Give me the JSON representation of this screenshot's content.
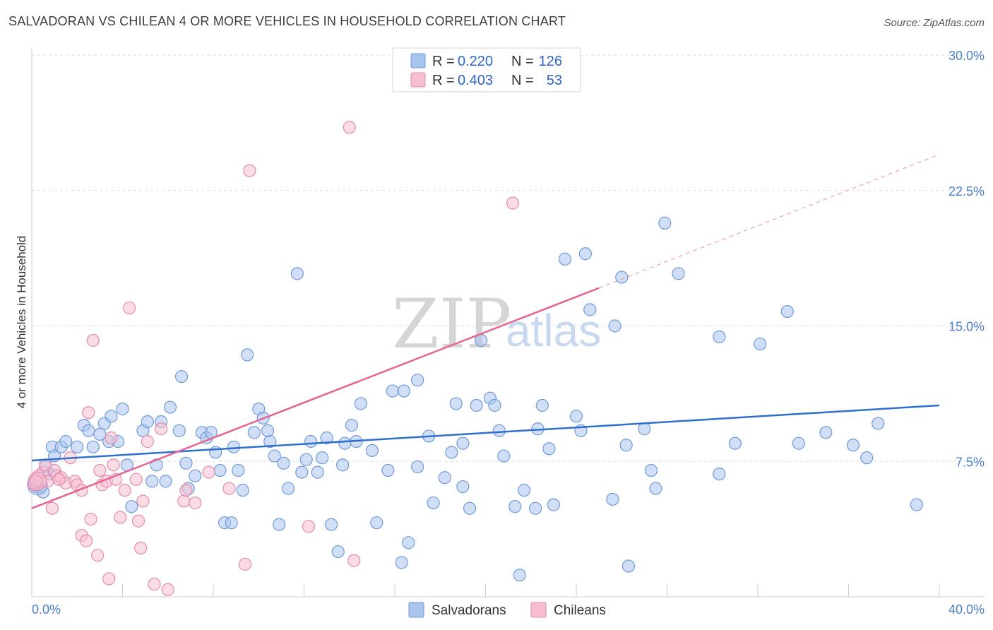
{
  "chart_data": {
    "type": "scatter",
    "title": "SALVADORAN VS CHILEAN 4 OR MORE VEHICLES IN HOUSEHOLD CORRELATION CHART",
    "source": "Source: ZipAtlas.com",
    "xlabel": "",
    "ylabel": "4 or more Vehicles in Household",
    "xlim": [
      0,
      40
    ],
    "ylim": [
      0,
      30
    ],
    "x_tick_labels": [
      "0.0%",
      "40.0%"
    ],
    "y_ticks": [
      7.5,
      15.0,
      22.5,
      30.0
    ],
    "y_tick_labels": [
      "7.5%",
      "15.0%",
      "22.5%",
      "30.0%"
    ],
    "watermark": {
      "zip": "ZIP",
      "atlas": "atlas"
    },
    "legend": [
      {
        "series": "Salvadorans",
        "r_label": "R =",
        "r_value": "0.220",
        "n_label": "N =",
        "n_value": "126"
      },
      {
        "series": "Chileans",
        "r_label": "R =",
        "r_value": "0.403",
        "n_label": "N =",
        "n_value": "53"
      }
    ],
    "colors": {
      "salvadorans_fill": "#a9c5ee",
      "salvadorans_stroke": "#6f9ad8",
      "salvadorans_line": "#2f6fcf",
      "chileans_fill": "#f6bfd1",
      "chileans_stroke": "#e58aab",
      "chileans_line": "#e46493",
      "grid": "#dddddd",
      "axis": "#cccccc"
    },
    "series": [
      {
        "name": "Salvadorans",
        "trend": {
          "x": [
            0,
            40
          ],
          "y": [
            7.55,
            10.6
          ]
        },
        "points": [
          [
            0.2,
            6.1
          ],
          [
            0.3,
            6.3
          ],
          [
            0.4,
            6.1
          ],
          [
            0.5,
            5.8
          ],
          [
            0.6,
            7.2
          ],
          [
            0.8,
            6.8
          ],
          [
            0.9,
            8.3
          ],
          [
            1.0,
            7.8
          ],
          [
            1.3,
            8.3
          ],
          [
            1.5,
            8.6
          ],
          [
            2.0,
            8.3
          ],
          [
            2.3,
            9.5
          ],
          [
            2.5,
            9.2
          ],
          [
            2.7,
            8.3
          ],
          [
            3.0,
            9.0
          ],
          [
            3.2,
            9.6
          ],
          [
            3.4,
            8.6
          ],
          [
            3.5,
            10.0
          ],
          [
            3.8,
            8.6
          ],
          [
            4.0,
            10.4
          ],
          [
            4.2,
            7.3
          ],
          [
            4.4,
            5.0
          ],
          [
            4.9,
            9.2
          ],
          [
            5.1,
            9.7
          ],
          [
            5.3,
            6.4
          ],
          [
            5.5,
            7.3
          ],
          [
            5.7,
            9.7
          ],
          [
            5.9,
            6.4
          ],
          [
            6.1,
            10.5
          ],
          [
            6.5,
            9.2
          ],
          [
            6.6,
            12.2
          ],
          [
            6.8,
            7.4
          ],
          [
            6.9,
            6.0
          ],
          [
            7.2,
            6.7
          ],
          [
            7.5,
            9.1
          ],
          [
            7.7,
            8.8
          ],
          [
            7.9,
            9.1
          ],
          [
            8.1,
            8.0
          ],
          [
            8.3,
            7.0
          ],
          [
            8.5,
            4.1
          ],
          [
            8.8,
            4.1
          ],
          [
            8.9,
            8.3
          ],
          [
            9.1,
            7.0
          ],
          [
            9.3,
            5.9
          ],
          [
            9.5,
            13.4
          ],
          [
            9.8,
            9.1
          ],
          [
            10.0,
            10.4
          ],
          [
            10.2,
            9.9
          ],
          [
            10.4,
            9.2
          ],
          [
            10.5,
            8.6
          ],
          [
            10.7,
            7.8
          ],
          [
            10.9,
            4.0
          ],
          [
            11.1,
            7.4
          ],
          [
            11.3,
            6.0
          ],
          [
            11.7,
            17.9
          ],
          [
            11.9,
            6.9
          ],
          [
            12.1,
            7.6
          ],
          [
            12.3,
            8.6
          ],
          [
            12.6,
            6.9
          ],
          [
            12.8,
            7.7
          ],
          [
            13.0,
            8.8
          ],
          [
            13.2,
            4.0
          ],
          [
            13.5,
            2.5
          ],
          [
            13.7,
            7.3
          ],
          [
            13.8,
            8.5
          ],
          [
            14.1,
            9.5
          ],
          [
            14.3,
            8.6
          ],
          [
            14.5,
            10.7
          ],
          [
            15.0,
            8.1
          ],
          [
            15.2,
            4.1
          ],
          [
            15.7,
            7.0
          ],
          [
            15.9,
            11.4
          ],
          [
            16.3,
            1.9
          ],
          [
            16.4,
            11.4
          ],
          [
            16.6,
            3.0
          ],
          [
            17.0,
            12.0
          ],
          [
            17.0,
            7.2
          ],
          [
            17.5,
            8.9
          ],
          [
            17.7,
            5.2
          ],
          [
            18.2,
            6.6
          ],
          [
            18.5,
            8.0
          ],
          [
            18.7,
            10.7
          ],
          [
            19.0,
            8.5
          ],
          [
            19.3,
            4.9
          ],
          [
            19.6,
            10.6
          ],
          [
            19.0,
            6.1
          ],
          [
            19.8,
            14.2
          ],
          [
            20.2,
            11.0
          ],
          [
            20.4,
            10.6
          ],
          [
            20.6,
            9.2
          ],
          [
            20.8,
            7.8
          ],
          [
            21.3,
            5.0
          ],
          [
            21.5,
            1.2
          ],
          [
            21.7,
            5.9
          ],
          [
            22.2,
            4.9
          ],
          [
            22.3,
            9.3
          ],
          [
            22.5,
            10.6
          ],
          [
            22.8,
            8.2
          ],
          [
            23.0,
            5.1
          ],
          [
            23.5,
            18.7
          ],
          [
            24.0,
            10.0
          ],
          [
            24.2,
            9.2
          ],
          [
            24.4,
            19.0
          ],
          [
            24.6,
            15.9
          ],
          [
            25.7,
            15.0
          ],
          [
            25.6,
            5.4
          ],
          [
            26.0,
            17.7
          ],
          [
            26.2,
            8.4
          ],
          [
            26.3,
            1.7
          ],
          [
            27.0,
            9.3
          ],
          [
            27.3,
            7.0
          ],
          [
            27.5,
            6.0
          ],
          [
            27.9,
            20.7
          ],
          [
            28.5,
            17.9
          ],
          [
            30.3,
            14.4
          ],
          [
            30.3,
            6.8
          ],
          [
            31.0,
            8.5
          ],
          [
            32.1,
            14.0
          ],
          [
            33.3,
            15.8
          ],
          [
            33.8,
            8.5
          ],
          [
            35.0,
            9.1
          ],
          [
            36.2,
            8.4
          ],
          [
            36.8,
            7.7
          ],
          [
            37.3,
            9.6
          ],
          [
            39.0,
            5.1
          ]
        ]
      },
      {
        "name": "Chileans",
        "trend": {
          "x": [
            0,
            25
          ],
          "y": [
            4.9,
            17.1
          ]
        },
        "trend_extension": {
          "x": [
            25,
            40
          ],
          "y": [
            17.1,
            24.5
          ]
        },
        "points": [
          [
            0.1,
            6.2
          ],
          [
            0.2,
            6.5
          ],
          [
            0.3,
            6.7
          ],
          [
            0.4,
            6.4
          ],
          [
            0.5,
            6.9
          ],
          [
            0.6,
            7.3
          ],
          [
            0.7,
            6.4
          ],
          [
            0.9,
            4.9
          ],
          [
            1.0,
            7.0
          ],
          [
            1.1,
            6.7
          ],
          [
            1.3,
            6.6
          ],
          [
            1.5,
            6.3
          ],
          [
            1.7,
            7.7
          ],
          [
            1.9,
            6.4
          ],
          [
            2.0,
            6.2
          ],
          [
            2.2,
            5.9
          ],
          [
            2.2,
            3.4
          ],
          [
            2.4,
            3.1
          ],
          [
            2.5,
            10.2
          ],
          [
            2.6,
            4.3
          ],
          [
            2.7,
            14.2
          ],
          [
            2.9,
            2.3
          ],
          [
            3.0,
            7.0
          ],
          [
            3.1,
            6.2
          ],
          [
            3.3,
            6.4
          ],
          [
            3.4,
            1.0
          ],
          [
            3.5,
            8.8
          ],
          [
            3.6,
            7.3
          ],
          [
            3.7,
            6.5
          ],
          [
            3.9,
            4.4
          ],
          [
            4.1,
            5.9
          ],
          [
            4.3,
            16.0
          ],
          [
            4.6,
            6.5
          ],
          [
            4.7,
            4.2
          ],
          [
            4.8,
            2.7
          ],
          [
            4.9,
            5.3
          ],
          [
            5.1,
            8.6
          ],
          [
            5.4,
            0.7
          ],
          [
            5.7,
            9.3
          ],
          [
            6.0,
            0.4
          ],
          [
            6.7,
            5.3
          ],
          [
            6.8,
            5.9
          ],
          [
            7.2,
            5.2
          ],
          [
            7.8,
            6.9
          ],
          [
            8.7,
            6.0
          ],
          [
            9.4,
            1.8
          ],
          [
            9.6,
            23.6
          ],
          [
            12.2,
            3.9
          ],
          [
            14.0,
            26.0
          ],
          [
            14.2,
            2.0
          ],
          [
            21.2,
            21.8
          ],
          [
            0.2,
            6.4
          ],
          [
            1.2,
            6.5
          ]
        ]
      }
    ]
  }
}
